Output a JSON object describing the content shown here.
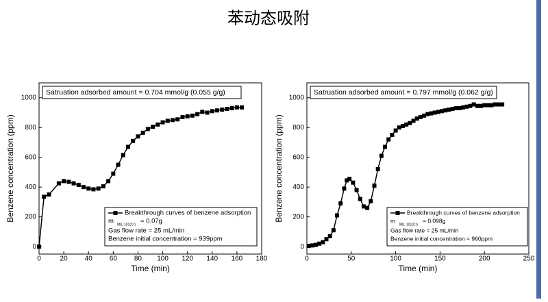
{
  "title": "苯动态吸附",
  "chart_data": [
    {
      "type": "line",
      "xlabel": "Time (min)",
      "ylabel": "Benzene concentration (ppm)",
      "xlim": [
        0,
        180
      ],
      "ylim": [
        -50,
        1100
      ],
      "xticks": [
        0,
        20,
        40,
        60,
        80,
        100,
        120,
        140,
        160,
        180
      ],
      "yticks": [
        0,
        200,
        400,
        600,
        800,
        1000
      ],
      "annotation": "Satruation adsorbed amount = 0.704 mmol/g (0.055 g/g)",
      "series": [
        {
          "name": "Breakthrough curves of benzene adsorption",
          "color": "#000000",
          "x": [
            0,
            4,
            8,
            16,
            20,
            24,
            28,
            32,
            36,
            40,
            44,
            48,
            52,
            56,
            60,
            64,
            68,
            72,
            76,
            80,
            84,
            88,
            92,
            96,
            100,
            104,
            108,
            112,
            116,
            120,
            124,
            128,
            132,
            136,
            140,
            144,
            148,
            152,
            156,
            160,
            164
          ],
          "values": [
            0,
            335,
            350,
            425,
            440,
            435,
            425,
            415,
            400,
            390,
            385,
            390,
            405,
            440,
            490,
            550,
            615,
            670,
            710,
            740,
            765,
            790,
            805,
            820,
            835,
            845,
            850,
            855,
            870,
            875,
            880,
            890,
            905,
            900,
            910,
            915,
            920,
            925,
            930,
            935,
            935
          ]
        }
      ],
      "mass": {
        "symbol": "m",
        "subscript": "MIL-101(Cr)",
        "value": "= 0.07g"
      },
      "notes": [
        "Gas flow rate = 25 mL/min",
        "Benzene initial concentration = 939ppm"
      ]
    },
    {
      "type": "line",
      "xlabel": "Time (min)",
      "ylabel": "Benzene concentration (ppm)",
      "xlim": [
        0,
        250
      ],
      "ylim": [
        -50,
        1100
      ],
      "xticks": [
        0,
        50,
        100,
        150,
        200,
        250
      ],
      "yticks": [
        0,
        200,
        400,
        600,
        800,
        1000
      ],
      "annotation": "Satruation adsorbed amount = 0.797 mmol/g (0.062 g/g)",
      "series": [
        {
          "name": "Breakthrough curves of benzene adsorption",
          "color": "#000000",
          "x": [
            2,
            6,
            10,
            14,
            18,
            22,
            26,
            30,
            34,
            38,
            42,
            45,
            48,
            52,
            56,
            60,
            64,
            68,
            72,
            76,
            80,
            84,
            88,
            92,
            96,
            100,
            104,
            108,
            112,
            116,
            120,
            124,
            128,
            132,
            136,
            140,
            144,
            148,
            152,
            156,
            160,
            164,
            168,
            172,
            176,
            180,
            184,
            188,
            192,
            196,
            200,
            204,
            208,
            212,
            216,
            220
          ],
          "values": [
            5,
            8,
            12,
            20,
            30,
            50,
            70,
            110,
            210,
            290,
            390,
            445,
            455,
            430,
            380,
            320,
            270,
            260,
            305,
            410,
            520,
            610,
            670,
            720,
            750,
            780,
            800,
            810,
            820,
            830,
            845,
            860,
            870,
            880,
            890,
            895,
            900,
            905,
            910,
            915,
            920,
            925,
            930,
            930,
            935,
            940,
            945,
            955,
            945,
            945,
            950,
            950,
            950,
            955,
            955,
            955
          ]
        }
      ],
      "mass": {
        "symbol": "m",
        "subscript": "MIL-101(Cr)",
        "value": "= 0.098g"
      },
      "notes": [
        "Gas flow rate = 25 mL/min",
        "Benzene initial concentration = 960ppm"
      ]
    }
  ]
}
